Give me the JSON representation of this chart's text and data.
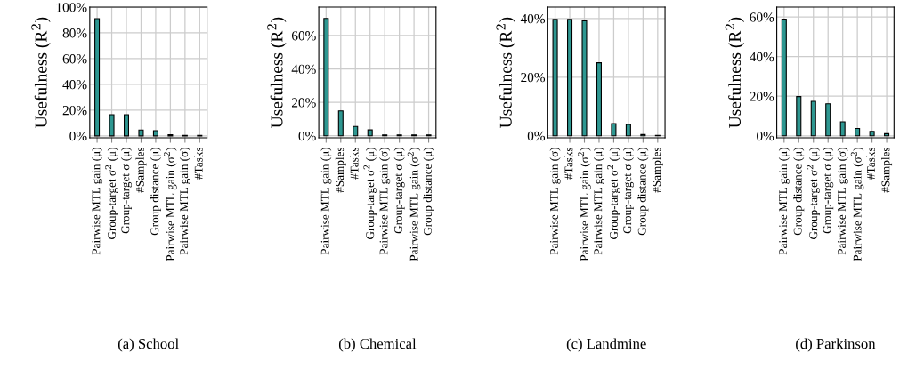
{
  "chart_data": [
    {
      "type": "bar",
      "title": "(a) School",
      "ylabel": "Usefulness (R$^{2}$)",
      "color": "#2e9791",
      "grid": true,
      "categories": [
        "Pairwise MTL gain (μ)",
        "Group-target σ$^{2}$ (μ)",
        "Group-target σ (μ)",
        "#Samples",
        "Group distance (μ)",
        "Pairwise MTL gain (σ$^{2}$)",
        "Pairwise MTL gain (σ)",
        "#Tasks"
      ],
      "values": [
        91,
        16.5,
        16.5,
        4.5,
        4,
        0.8,
        0.4,
        0.4
      ],
      "ylim": [
        -1.5,
        100
      ],
      "yticks": [
        {
          "value": 0,
          "label": "0%"
        },
        {
          "value": 20,
          "label": "20%"
        },
        {
          "value": 40,
          "label": "40%"
        },
        {
          "value": 60,
          "label": "60%"
        },
        {
          "value": 80,
          "label": "80%"
        },
        {
          "value": 100,
          "label": "100%"
        }
      ]
    },
    {
      "type": "bar",
      "title": "(b) Chemical",
      "ylabel": "Usefulness (R$^{2}$)",
      "color": "#2e9791",
      "grid": true,
      "categories": [
        "Pairwise MTL gain (μ)",
        "#Samples",
        "#Tasks",
        "Group-target σ$^{2}$ (μ)",
        "Pairwise MTL gain (σ)",
        "Group-target σ (μ)",
        "Pairwise MTL gain (σ$^{2}$)",
        "Group distance (μ)"
      ],
      "values": [
        70.2,
        14.9,
        5.6,
        3.5,
        0.5,
        0.5,
        0.5,
        0.5
      ],
      "ylim": [
        -1.2,
        77
      ],
      "yticks": [
        {
          "value": 0,
          "label": "0%"
        },
        {
          "value": 20,
          "label": "20%"
        },
        {
          "value": 40,
          "label": "40%"
        },
        {
          "value": 60,
          "label": "60%"
        }
      ]
    },
    {
      "type": "bar",
      "title": "(c) Landmine",
      "ylabel": "Usefulness (R$^{2}$)",
      "color": "#2e9791",
      "grid": true,
      "categories": [
        "Pairwise MTL gain (σ)",
        "#Tasks",
        "Pairwise MTL gain (σ$^{2}$)",
        "Pairwise MTL gain (μ)",
        "Group-target σ$^{2}$ (μ)",
        "Group-target σ (μ)",
        "Group distance (μ)",
        "#Samples"
      ],
      "values": [
        39.7,
        39.7,
        39.2,
        24.9,
        4.1,
        3.9,
        0.4,
        0.1
      ],
      "ylim": [
        -0.7,
        43.9
      ],
      "yticks": [
        {
          "value": 0,
          "label": "0%"
        },
        {
          "value": 20,
          "label": "20%"
        },
        {
          "value": 40,
          "label": "40%"
        }
      ]
    },
    {
      "type": "bar",
      "title": "(d) Parkinson",
      "ylabel": "Usefulness (R$^{2}$)",
      "color": "#2e9791",
      "grid": true,
      "categories": [
        "Pairwise MTL gain (μ)",
        "Group distance (μ)",
        "Group-target σ$^{2}$ (μ)",
        "Group-target σ (μ)",
        "Pairwise MTL gain (σ)",
        "Pairwise MTL gain (σ$^{2}$)",
        "#Tasks",
        "#Samples"
      ],
      "values": [
        58.9,
        19.8,
        17.4,
        16.2,
        7.1,
        3.7,
        2.2,
        1.1
      ],
      "ylim": [
        -1.0,
        65
      ],
      "yticks": [
        {
          "value": 0,
          "label": "0%"
        },
        {
          "value": 20,
          "label": "20%"
        },
        {
          "value": 40,
          "label": "40%"
        },
        {
          "value": 60,
          "label": "60%"
        }
      ]
    }
  ]
}
